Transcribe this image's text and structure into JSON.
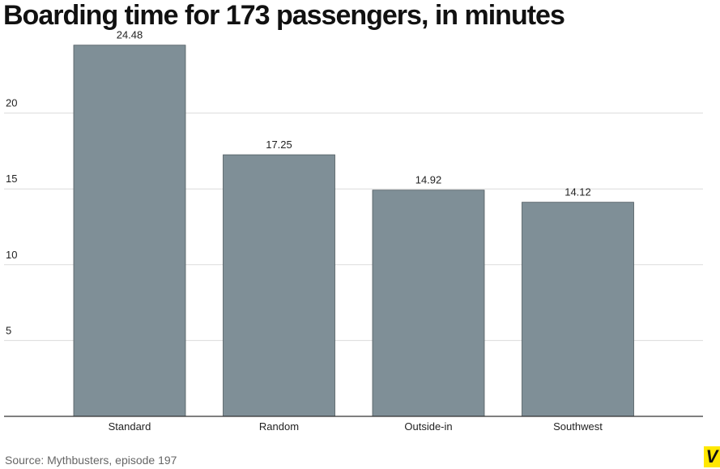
{
  "chart_data": {
    "type": "bar",
    "title": "Boarding time for 173 passengers, in minutes",
    "categories": [
      "Standard",
      "Random",
      "Outside-in",
      "Southwest"
    ],
    "values": [
      24.48,
      17.25,
      14.92,
      14.12
    ],
    "color": "#7f8f97",
    "ylim": [
      0,
      25
    ],
    "yticks": [
      5,
      10,
      15,
      20
    ],
    "grid": true,
    "source": "Source: Mythbusters, episode 197",
    "logo": "V"
  }
}
